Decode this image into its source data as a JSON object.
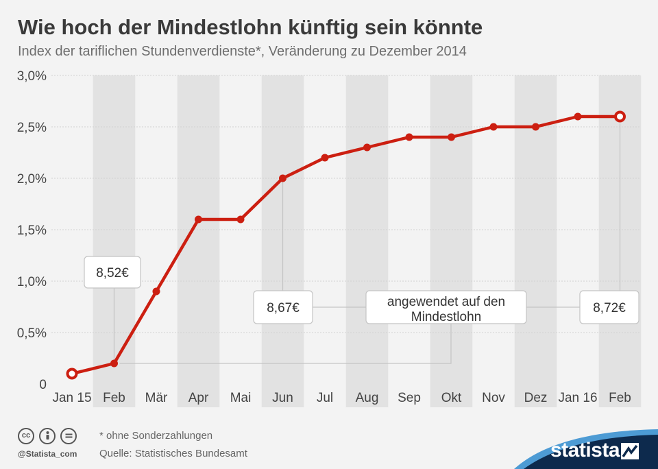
{
  "chart_data": {
    "type": "line",
    "title": "Wie hoch der Mindestlohn künftig sein könnte",
    "subtitle": "Index der tariflichen Stundenverdienste*, Veränderung zu Dezember 2014",
    "categories": [
      "Jan 15",
      "Feb",
      "Mär",
      "Apr",
      "Mai",
      "Jun",
      "Jul",
      "Aug",
      "Sep",
      "Okt",
      "Nov",
      "Dez",
      "Jan 16",
      "Feb"
    ],
    "series": [
      {
        "values": [
          0.1,
          0.2,
          0.9,
          1.6,
          1.6,
          2.0,
          2.2,
          2.3,
          2.4,
          2.4,
          2.5,
          2.5,
          2.6,
          2.6
        ]
      }
    ],
    "ylim": [
      0,
      3.0
    ],
    "yticks": [
      0,
      0.5,
      1.0,
      1.5,
      2.0,
      2.5,
      3.0
    ],
    "ytick_labels": [
      "0",
      "0,5%",
      "1,0%",
      "1,5%",
      "2,0%",
      "2,5%",
      "3,0%"
    ],
    "line_color": "#cc1f11",
    "hollow_points": [
      0,
      13
    ],
    "annotations": {
      "wage_labels": [
        {
          "category_index": 1,
          "text": "8,52€"
        },
        {
          "category_index": 5,
          "text": "8,67€"
        },
        {
          "category_index": 13,
          "text": "8,72€"
        }
      ],
      "applied_line1": "angewendet auf den",
      "applied_line2": "Mindestlohn"
    }
  },
  "footer": {
    "note": "* ohne Sonderzahlungen",
    "source": "Quelle: Statistisches Bundesamt",
    "handle": "@Statista_com",
    "brand": "statista",
    "license_icons": [
      "cc-icon",
      "by-icon",
      "nd-icon"
    ]
  }
}
